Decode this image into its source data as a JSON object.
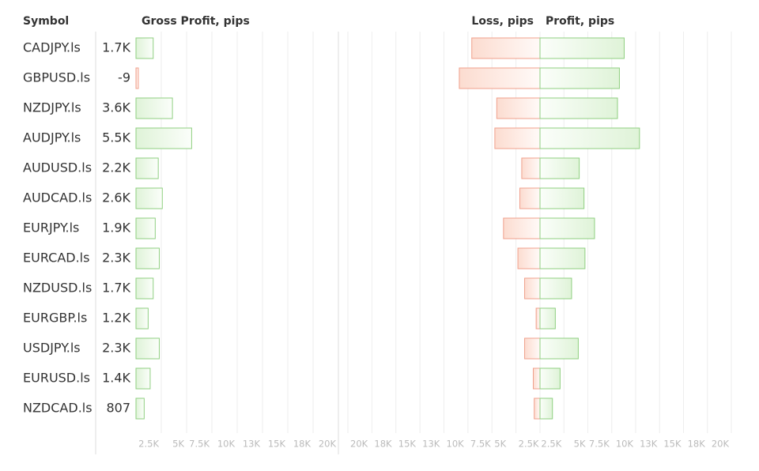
{
  "header": {
    "symbol": "Symbol"
  },
  "chart_data": {
    "type": "bar",
    "categories": [
      "CADJPY.ls",
      "GBPUSD.ls",
      "NZDJPY.ls",
      "AUDJPY.ls",
      "AUDUSD.ls",
      "AUDCAD.ls",
      "EURJPY.ls",
      "EURCAD.ls",
      "NZDUSD.ls",
      "EURGBP.ls",
      "USDJPY.ls",
      "EURUSD.ls",
      "NZDCAD.ls"
    ],
    "series": [
      {
        "name": "Gross Profit, pips",
        "color": "#8fcf80",
        "negative_color": "#f0a08c",
        "values": [
          1700,
          -9,
          3600,
          5500,
          2200,
          2600,
          1900,
          2300,
          1700,
          1200,
          2300,
          1400,
          807
        ],
        "value_labels": [
          "1.7K",
          "-9",
          "3.6K",
          "5.5K",
          "2.2K",
          "2.6K",
          "1.9K",
          "2.3K",
          "1.7K",
          "1.2K",
          "2.3K",
          "1.4K",
          "807"
        ]
      },
      {
        "name": "Loss, pips",
        "color": "#f0a08c",
        "values": [
          7100,
          8400,
          4500,
          4700,
          1900,
          2100,
          3800,
          2300,
          1600,
          400,
          1600,
          700,
          600
        ]
      },
      {
        "name": "Profit, pips",
        "color": "#8fcf80",
        "values": [
          8800,
          8300,
          8100,
          10400,
          4100,
          4600,
          5700,
          4700,
          3300,
          1600,
          4000,
          2100,
          1300
        ]
      }
    ],
    "xlim": [
      0,
      20000
    ],
    "xticks": [
      {
        "value": 2500,
        "label": "2.5K"
      },
      {
        "value": 5000,
        "label": "5K"
      },
      {
        "value": 7500,
        "label": "7.5K"
      },
      {
        "value": 10000,
        "label": "10K"
      },
      {
        "value": 12500,
        "label": "13K"
      },
      {
        "value": 15000,
        "label": "15K"
      },
      {
        "value": 17500,
        "label": "18K"
      },
      {
        "value": 20000,
        "label": "20K"
      }
    ],
    "grid": true
  }
}
